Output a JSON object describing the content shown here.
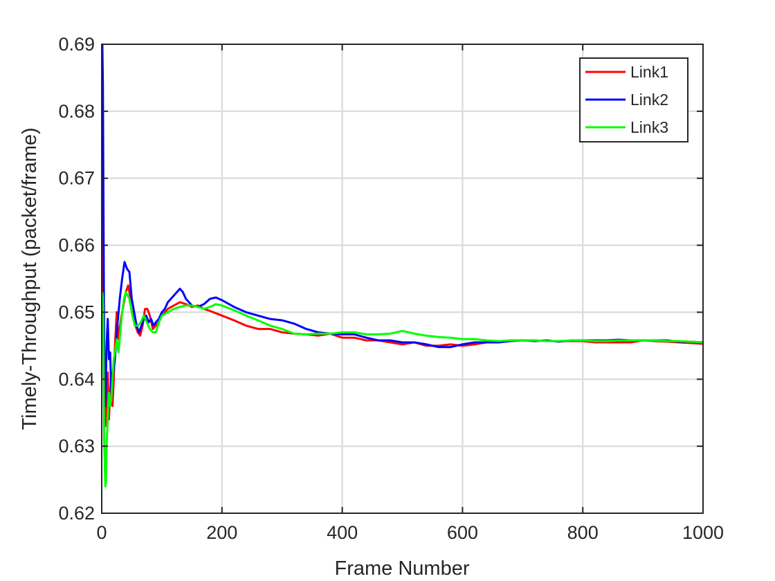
{
  "chart_data": {
    "type": "line",
    "title": "",
    "xlabel": "Frame Number",
    "ylabel": "Timely-Throughput (packet/frame)",
    "xlim": [
      0,
      1000
    ],
    "ylim": [
      0.62,
      0.69
    ],
    "xticks": [
      0,
      200,
      400,
      600,
      800,
      1000
    ],
    "xtick_labels": [
      "0",
      "200",
      "400",
      "600",
      "800",
      "1000"
    ],
    "yticks": [
      0.62,
      0.63,
      0.64,
      0.65,
      0.66,
      0.67,
      0.68,
      0.69
    ],
    "ytick_labels": [
      "0.62",
      "0.63",
      "0.64",
      "0.65",
      "0.66",
      "0.67",
      "0.68",
      "0.69"
    ],
    "grid": true,
    "legend_position": "top-right",
    "series": [
      {
        "name": "Link1",
        "color": "#ff0000",
        "points": [
          [
            1,
            0.69
          ],
          [
            2,
            0.655
          ],
          [
            4,
            0.641
          ],
          [
            6,
            0.633
          ],
          [
            8,
            0.637
          ],
          [
            10,
            0.641
          ],
          [
            12,
            0.634
          ],
          [
            14,
            0.638
          ],
          [
            16,
            0.641
          ],
          [
            18,
            0.636
          ],
          [
            20,
            0.64
          ],
          [
            22,
            0.645
          ],
          [
            25,
            0.65
          ],
          [
            28,
            0.646
          ],
          [
            32,
            0.649
          ],
          [
            36,
            0.651
          ],
          [
            40,
            0.653
          ],
          [
            44,
            0.654
          ],
          [
            48,
            0.652
          ],
          [
            52,
            0.651
          ],
          [
            56,
            0.648
          ],
          [
            60,
            0.647
          ],
          [
            64,
            0.6465
          ],
          [
            68,
            0.648
          ],
          [
            72,
            0.6505
          ],
          [
            76,
            0.6505
          ],
          [
            80,
            0.6495
          ],
          [
            85,
            0.6475
          ],
          [
            90,
            0.648
          ],
          [
            95,
            0.6485
          ],
          [
            100,
            0.6495
          ],
          [
            110,
            0.6505
          ],
          [
            120,
            0.651
          ],
          [
            130,
            0.6515
          ],
          [
            140,
            0.6512
          ],
          [
            150,
            0.6508
          ],
          [
            160,
            0.651
          ],
          [
            170,
            0.6505
          ],
          [
            180,
            0.6502
          ],
          [
            200,
            0.6495
          ],
          [
            220,
            0.6488
          ],
          [
            240,
            0.648
          ],
          [
            260,
            0.6475
          ],
          [
            280,
            0.6475
          ],
          [
            300,
            0.647
          ],
          [
            320,
            0.6468
          ],
          [
            340,
            0.6467
          ],
          [
            360,
            0.6465
          ],
          [
            380,
            0.6468
          ],
          [
            400,
            0.6462
          ],
          [
            420,
            0.6462
          ],
          [
            440,
            0.6458
          ],
          [
            460,
            0.6458
          ],
          [
            480,
            0.6455
          ],
          [
            500,
            0.6452
          ],
          [
            520,
            0.6455
          ],
          [
            540,
            0.645
          ],
          [
            560,
            0.645
          ],
          [
            580,
            0.6452
          ],
          [
            600,
            0.645
          ],
          [
            620,
            0.6452
          ],
          [
            640,
            0.6455
          ],
          [
            660,
            0.6455
          ],
          [
            680,
            0.6458
          ],
          [
            700,
            0.6458
          ],
          [
            720,
            0.6458
          ],
          [
            740,
            0.6457
          ],
          [
            760,
            0.6457
          ],
          [
            780,
            0.6457
          ],
          [
            800,
            0.6457
          ],
          [
            820,
            0.6455
          ],
          [
            840,
            0.6455
          ],
          [
            860,
            0.6455
          ],
          [
            880,
            0.6455
          ],
          [
            900,
            0.6458
          ],
          [
            920,
            0.6457
          ],
          [
            940,
            0.6456
          ],
          [
            960,
            0.6455
          ],
          [
            980,
            0.6454
          ],
          [
            1000,
            0.6453
          ]
        ]
      },
      {
        "name": "Link2",
        "color": "#0000ff",
        "points": [
          [
            1,
            0.69
          ],
          [
            2,
            0.684
          ],
          [
            4,
            0.645
          ],
          [
            6,
            0.636
          ],
          [
            8,
            0.645
          ],
          [
            10,
            0.649
          ],
          [
            12,
            0.643
          ],
          [
            14,
            0.644
          ],
          [
            16,
            0.638
          ],
          [
            18,
            0.64
          ],
          [
            22,
            0.643
          ],
          [
            26,
            0.648
          ],
          [
            30,
            0.652
          ],
          [
            34,
            0.655
          ],
          [
            38,
            0.6575
          ],
          [
            42,
            0.6565
          ],
          [
            46,
            0.656
          ],
          [
            50,
            0.652
          ],
          [
            54,
            0.65
          ],
          [
            58,
            0.648
          ],
          [
            62,
            0.647
          ],
          [
            66,
            0.648
          ],
          [
            70,
            0.649
          ],
          [
            74,
            0.6495
          ],
          [
            78,
            0.6485
          ],
          [
            82,
            0.649
          ],
          [
            86,
            0.648
          ],
          [
            90,
            0.6485
          ],
          [
            95,
            0.649
          ],
          [
            100,
            0.65
          ],
          [
            105,
            0.6505
          ],
          [
            110,
            0.6515
          ],
          [
            115,
            0.652
          ],
          [
            120,
            0.6525
          ],
          [
            125,
            0.653
          ],
          [
            130,
            0.6535
          ],
          [
            135,
            0.653
          ],
          [
            140,
            0.652
          ],
          [
            145,
            0.6515
          ],
          [
            150,
            0.651
          ],
          [
            160,
            0.6508
          ],
          [
            170,
            0.6512
          ],
          [
            180,
            0.652
          ],
          [
            190,
            0.6522
          ],
          [
            200,
            0.6518
          ],
          [
            220,
            0.6508
          ],
          [
            240,
            0.65
          ],
          [
            260,
            0.6495
          ],
          [
            280,
            0.649
          ],
          [
            300,
            0.6488
          ],
          [
            320,
            0.6483
          ],
          [
            340,
            0.6475
          ],
          [
            360,
            0.647
          ],
          [
            380,
            0.6468
          ],
          [
            400,
            0.6467
          ],
          [
            420,
            0.6467
          ],
          [
            440,
            0.6462
          ],
          [
            460,
            0.6458
          ],
          [
            480,
            0.6458
          ],
          [
            500,
            0.6455
          ],
          [
            520,
            0.6455
          ],
          [
            540,
            0.6452
          ],
          [
            560,
            0.6448
          ],
          [
            580,
            0.6448
          ],
          [
            600,
            0.6452
          ],
          [
            620,
            0.6455
          ],
          [
            640,
            0.6455
          ],
          [
            660,
            0.6455
          ],
          [
            680,
            0.6457
          ],
          [
            700,
            0.6458
          ],
          [
            720,
            0.6457
          ],
          [
            740,
            0.6458
          ],
          [
            760,
            0.6456
          ],
          [
            780,
            0.6458
          ],
          [
            800,
            0.6458
          ],
          [
            820,
            0.6458
          ],
          [
            840,
            0.6458
          ],
          [
            860,
            0.6459
          ],
          [
            880,
            0.6458
          ],
          [
            900,
            0.6458
          ],
          [
            920,
            0.6458
          ],
          [
            940,
            0.6458
          ],
          [
            960,
            0.6456
          ],
          [
            980,
            0.6456
          ],
          [
            1000,
            0.6455
          ]
        ]
      },
      {
        "name": "Link3",
        "color": "#00ff00",
        "points": [
          [
            1,
            0.653
          ],
          [
            2,
            0.652
          ],
          [
            3,
            0.645
          ],
          [
            4,
            0.631
          ],
          [
            5,
            0.628
          ],
          [
            6,
            0.624
          ],
          [
            7,
            0.6245
          ],
          [
            8,
            0.63
          ],
          [
            10,
            0.634
          ],
          [
            12,
            0.638
          ],
          [
            14,
            0.636
          ],
          [
            16,
            0.637
          ],
          [
            18,
            0.64
          ],
          [
            20,
            0.643
          ],
          [
            22,
            0.644
          ],
          [
            25,
            0.646
          ],
          [
            28,
            0.644
          ],
          [
            31,
            0.647
          ],
          [
            34,
            0.65
          ],
          [
            37,
            0.652
          ],
          [
            40,
            0.653
          ],
          [
            43,
            0.6525
          ],
          [
            46,
            0.652
          ],
          [
            50,
            0.65
          ],
          [
            55,
            0.648
          ],
          [
            60,
            0.648
          ],
          [
            65,
            0.6485
          ],
          [
            70,
            0.6495
          ],
          [
            75,
            0.6485
          ],
          [
            80,
            0.6475
          ],
          [
            85,
            0.647
          ],
          [
            90,
            0.647
          ],
          [
            95,
            0.6485
          ],
          [
            100,
            0.6495
          ],
          [
            110,
            0.65
          ],
          [
            120,
            0.6505
          ],
          [
            130,
            0.6508
          ],
          [
            140,
            0.651
          ],
          [
            150,
            0.651
          ],
          [
            160,
            0.6508
          ],
          [
            170,
            0.6505
          ],
          [
            180,
            0.6508
          ],
          [
            190,
            0.6512
          ],
          [
            200,
            0.651
          ],
          [
            220,
            0.6503
          ],
          [
            240,
            0.6495
          ],
          [
            260,
            0.6488
          ],
          [
            280,
            0.648
          ],
          [
            300,
            0.6475
          ],
          [
            320,
            0.6468
          ],
          [
            340,
            0.6467
          ],
          [
            360,
            0.6468
          ],
          [
            380,
            0.6468
          ],
          [
            400,
            0.647
          ],
          [
            420,
            0.647
          ],
          [
            440,
            0.6467
          ],
          [
            460,
            0.6467
          ],
          [
            480,
            0.6468
          ],
          [
            500,
            0.6472
          ],
          [
            520,
            0.6468
          ],
          [
            540,
            0.6465
          ],
          [
            560,
            0.6463
          ],
          [
            580,
            0.6462
          ],
          [
            600,
            0.646
          ],
          [
            620,
            0.646
          ],
          [
            640,
            0.6458
          ],
          [
            660,
            0.6457
          ],
          [
            680,
            0.6458
          ],
          [
            700,
            0.6458
          ],
          [
            720,
            0.6458
          ],
          [
            740,
            0.6457
          ],
          [
            760,
            0.6457
          ],
          [
            780,
            0.6458
          ],
          [
            800,
            0.6458
          ],
          [
            820,
            0.6457
          ],
          [
            840,
            0.6457
          ],
          [
            860,
            0.6458
          ],
          [
            880,
            0.6458
          ],
          [
            900,
            0.6458
          ],
          [
            920,
            0.6458
          ],
          [
            940,
            0.6457
          ],
          [
            960,
            0.6457
          ],
          [
            980,
            0.6456
          ],
          [
            1000,
            0.6455
          ]
        ]
      }
    ]
  }
}
